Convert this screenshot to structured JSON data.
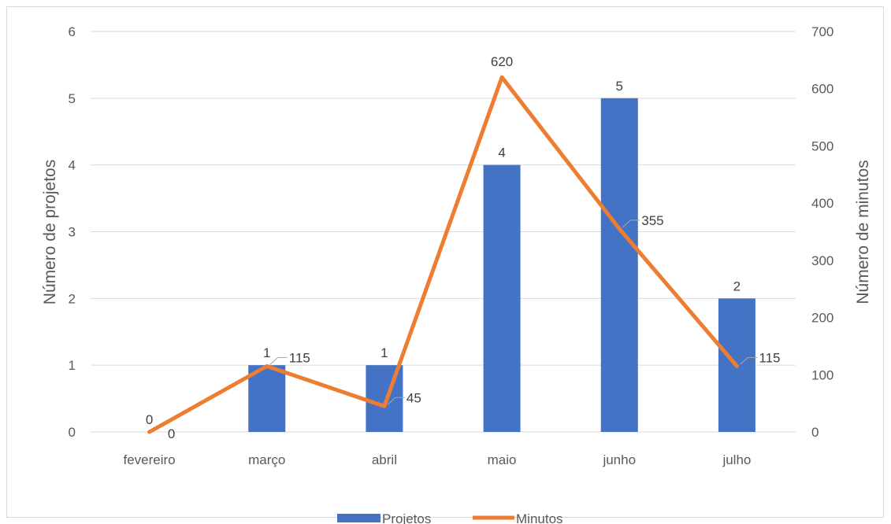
{
  "chart_data": {
    "type": "bar",
    "categories": [
      "fevereiro",
      "março",
      "abril",
      "maio",
      "junho",
      "julho"
    ],
    "series": [
      {
        "name": "Projetos",
        "type": "bar",
        "axis": "left",
        "values": [
          0,
          1,
          1,
          4,
          5,
          2
        ],
        "labels": [
          "0",
          "1",
          "1",
          "4",
          "5",
          "2"
        ]
      },
      {
        "name": "Minutos",
        "type": "line",
        "axis": "right",
        "values": [
          0,
          115,
          45,
          620,
          355,
          115
        ],
        "labels": [
          "0",
          "115",
          "45",
          "620",
          "355",
          "115"
        ]
      }
    ],
    "title": "",
    "ylabel": "Número de projetos",
    "y2label": "Número de minutos",
    "ylim": [
      0,
      6
    ],
    "y2lim": [
      0,
      700
    ],
    "yticks": [
      "0",
      "1",
      "2",
      "3",
      "4",
      "5",
      "6"
    ],
    "y2ticks": [
      "0",
      "100",
      "200",
      "300",
      "400",
      "500",
      "600",
      "700"
    ],
    "grid": true,
    "legend_position": "bottom",
    "colors": {
      "bars": "#4472c4",
      "line": "#ed7d31",
      "grid": "#d9d9d9",
      "text": "#595959"
    }
  }
}
